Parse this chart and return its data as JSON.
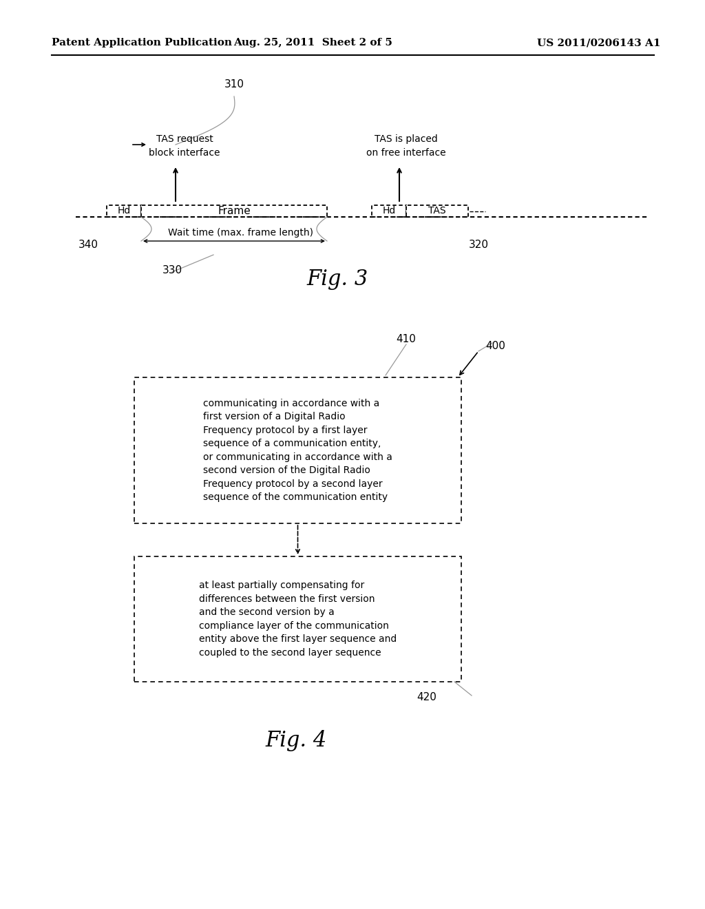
{
  "bg_color": "#ffffff",
  "header_left": "Patent Application Publication",
  "header_mid": "Aug. 25, 2011  Sheet 2 of 5",
  "header_right": "US 2011/0206143 A1",
  "fig3_label": "Fig. 3",
  "fig4_label": "Fig. 4",
  "label_310": "310",
  "label_320": "320",
  "label_330": "330",
  "label_340": "340",
  "label_400": "400",
  "label_410": "410",
  "label_420": "420",
  "tas_request_line1": "TAS request",
  "tas_request_line2": "block interface",
  "tas_placed_line1": "TAS is placed",
  "tas_placed_line2": "on free interface",
  "wait_time_text": "Wait time (max. frame length)",
  "hd_text": "Hd",
  "frame_text": "Frame",
  "tas_text": "TAS",
  "box1_text": "communicating in accordance with a\nfirst version of a Digital Radio\nFrequency protocol by a first layer\nsequence of a communication entity,\nor communicating in accordance with a\nsecond version of the Digital Radio\nFrequency protocol by a second layer\nsequence of the communication entity",
  "box2_text": "at least partially compensating for\ndifferences between the first version\nand the second version by a\ncompliance layer of the communication\nentity above the first layer sequence and\ncoupled to the second layer sequence"
}
